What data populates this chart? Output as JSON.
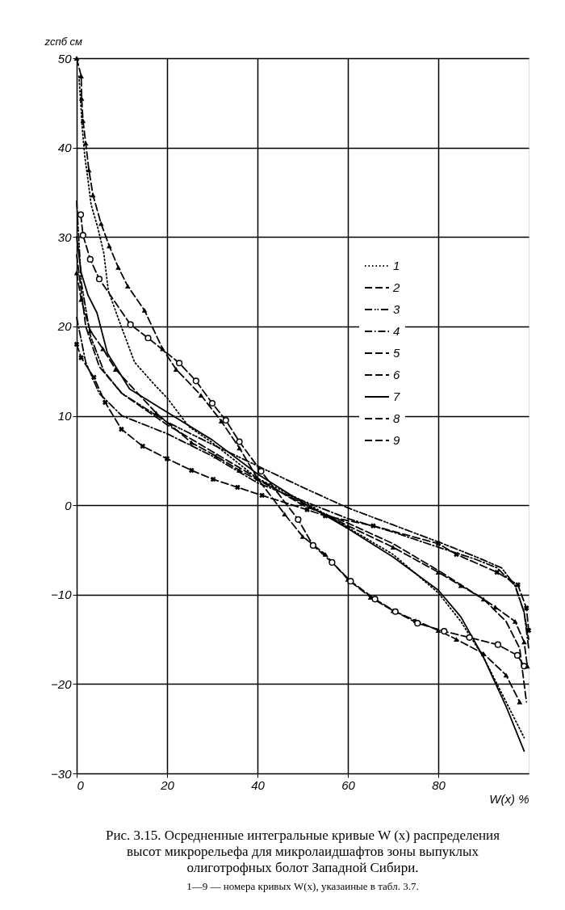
{
  "chart_data": {
    "type": "line",
    "title": "Рис. 3.15. Осредненные интегральные кривые W (x) распределения высот микрорельефа для микролаидшафтов зоны выпуклых олиготрофных болот Западной Сибири.",
    "subtitle": "1—9 — номера кривых W(x), указаиные в табл. 3.7.",
    "xlabel": "W(x) %",
    "ylabel": "zспб см",
    "xlim": [
      0,
      100
    ],
    "ylim": [
      -30,
      50
    ],
    "xticks": [
      0,
      20,
      40,
      60,
      80
    ],
    "yticks": [
      -30,
      -20,
      -10,
      0,
      10,
      20,
      30,
      40,
      50
    ],
    "grid": true,
    "legend": "top right",
    "series": [
      {
        "name": "1",
        "color": "#000000",
        "line_style": "dotted",
        "marker": "none",
        "x": [
          0.5,
          1.3,
          1.8,
          2.5,
          3.2,
          4.7,
          6,
          7,
          9.2,
          12.8,
          17,
          20,
          24.8,
          30,
          40,
          50,
          60,
          70,
          80,
          85,
          90,
          95,
          99
        ],
        "values": [
          48,
          41.8,
          39,
          36.4,
          33.6,
          31,
          28.2,
          24,
          20.9,
          16,
          13.6,
          12,
          8.8,
          7,
          3,
          0.5,
          -2.5,
          -5.5,
          -9.8,
          -13,
          -17,
          -22,
          -26
        ]
      },
      {
        "name": "2",
        "color": "#000000",
        "line_style": "dashed",
        "marker": "none",
        "x": [
          0,
          2,
          5,
          10,
          20,
          30,
          40,
          50,
          60,
          70,
          80,
          90,
          95,
          98,
          99.5
        ],
        "values": [
          28,
          20,
          15.5,
          12.5,
          9,
          6,
          3,
          0,
          -2,
          -4.3,
          -7.3,
          -10.5,
          -13,
          -16,
          -22
        ]
      },
      {
        "name": "3",
        "color": "#000000",
        "line_style": "dashdotdot",
        "marker": "none",
        "x": [
          0,
          1,
          3,
          6,
          10,
          20,
          30,
          40,
          50,
          60,
          70,
          80,
          88,
          94,
          97,
          99,
          100
        ],
        "values": [
          34,
          25,
          19,
          15,
          12.5,
          9.3,
          6.8,
          4.4,
          2,
          -0.3,
          -2.2,
          -4.1,
          -5.7,
          -7,
          -9,
          -12,
          -15
        ]
      },
      {
        "name": "4",
        "color": "#000000",
        "line_style": "dashdot",
        "marker": "none",
        "x": [
          0,
          2,
          5,
          10,
          20,
          30,
          40,
          50,
          60,
          70,
          80,
          88,
          93,
          97,
          99,
          100
        ],
        "values": [
          21,
          16,
          12.5,
          10,
          8,
          5.5,
          2.5,
          0.5,
          -1.5,
          -3,
          -4.7,
          -6,
          -7,
          -9,
          -12,
          -16
        ]
      },
      {
        "name": "5",
        "color": "#000000",
        "line_style": "dashed",
        "marker": "triangle",
        "x": [
          0,
          1,
          1.1,
          1.4,
          2,
          2.7,
          3.6,
          5.4,
          7.2,
          9.2,
          11.3,
          15,
          19,
          22,
          27.5,
          32,
          36,
          40,
          46,
          50,
          55,
          60,
          65,
          70,
          75,
          80,
          84,
          90,
          95,
          98
        ],
        "values": [
          50,
          48,
          45.5,
          43,
          40.5,
          37.5,
          34.7,
          31.5,
          29,
          26.6,
          24.5,
          21.8,
          17.5,
          15.2,
          12.3,
          9.4,
          6.4,
          3,
          -1,
          -3.5,
          -5.5,
          -8.3,
          -10.3,
          -11.8,
          -12.9,
          -14,
          -15,
          -16.6,
          -19,
          -22
        ]
      },
      {
        "name": "6",
        "color": "#000000",
        "line_style": "dashed",
        "marker": "circle",
        "x": [
          0.9,
          1.4,
          3,
          5,
          11.9,
          15.8,
          22.7,
          26.4,
          30,
          33,
          36,
          40.8,
          49,
          52.3,
          56.5,
          60.6,
          66,
          70.5,
          75.4,
          81.3,
          86.9,
          93.2,
          97.5,
          99
        ],
        "values": [
          32.5,
          30.2,
          27.5,
          25.3,
          20.2,
          18.7,
          15.9,
          13.9,
          11.4,
          9.5,
          7.1,
          3.8,
          -1.6,
          -4.5,
          -6.4,
          -8.5,
          -10.5,
          -11.9,
          -13.2,
          -14.1,
          -14.8,
          -15.6,
          -16.8,
          -18
        ]
      },
      {
        "name": "7",
        "color": "#000000",
        "line_style": "solid",
        "marker": "none",
        "x": [
          0,
          1,
          2.5,
          4.5,
          6.8,
          11.7,
          20,
          30,
          40,
          50,
          60,
          70,
          80,
          85,
          90,
          95,
          99
        ],
        "values": [
          30,
          26,
          23.5,
          21.5,
          17,
          13,
          10.4,
          7.3,
          3.5,
          0.3,
          -2.6,
          -5.8,
          -9.5,
          -12.5,
          -17,
          -22.5,
          -27.5
        ]
      },
      {
        "name": "8",
        "color": "#000000",
        "line_style": "dashed",
        "marker": "triangle",
        "x": [
          0,
          1,
          3,
          5.8,
          8.6,
          17.6,
          25.4,
          30.8,
          36,
          50,
          60,
          70,
          80,
          85,
          90,
          92.6,
          97,
          99,
          99.7
        ],
        "values": [
          26,
          23,
          19.5,
          17.5,
          15.2,
          10.3,
          7,
          5.5,
          3.9,
          0.2,
          -2.3,
          -4.7,
          -7.5,
          -9,
          -10.5,
          -11.4,
          -13,
          -15.3,
          -18
        ]
      },
      {
        "name": "9",
        "color": "#000000",
        "line_style": "dashed",
        "marker": "cross",
        "x": [
          0,
          1,
          3.8,
          6.3,
          9.9,
          14.6,
          20,
          25.4,
          30.2,
          35.6,
          41,
          51,
          55,
          65.6,
          80,
          84,
          93,
          97.6,
          99.5,
          100
        ],
        "values": [
          18,
          16.5,
          14.3,
          11.5,
          8.5,
          6.6,
          5.2,
          3.9,
          2.9,
          2,
          1.1,
          -0.5,
          -1.2,
          -2.3,
          -4.3,
          -5.5,
          -7.5,
          -8.9,
          -11.5,
          -14
        ]
      }
    ]
  }
}
